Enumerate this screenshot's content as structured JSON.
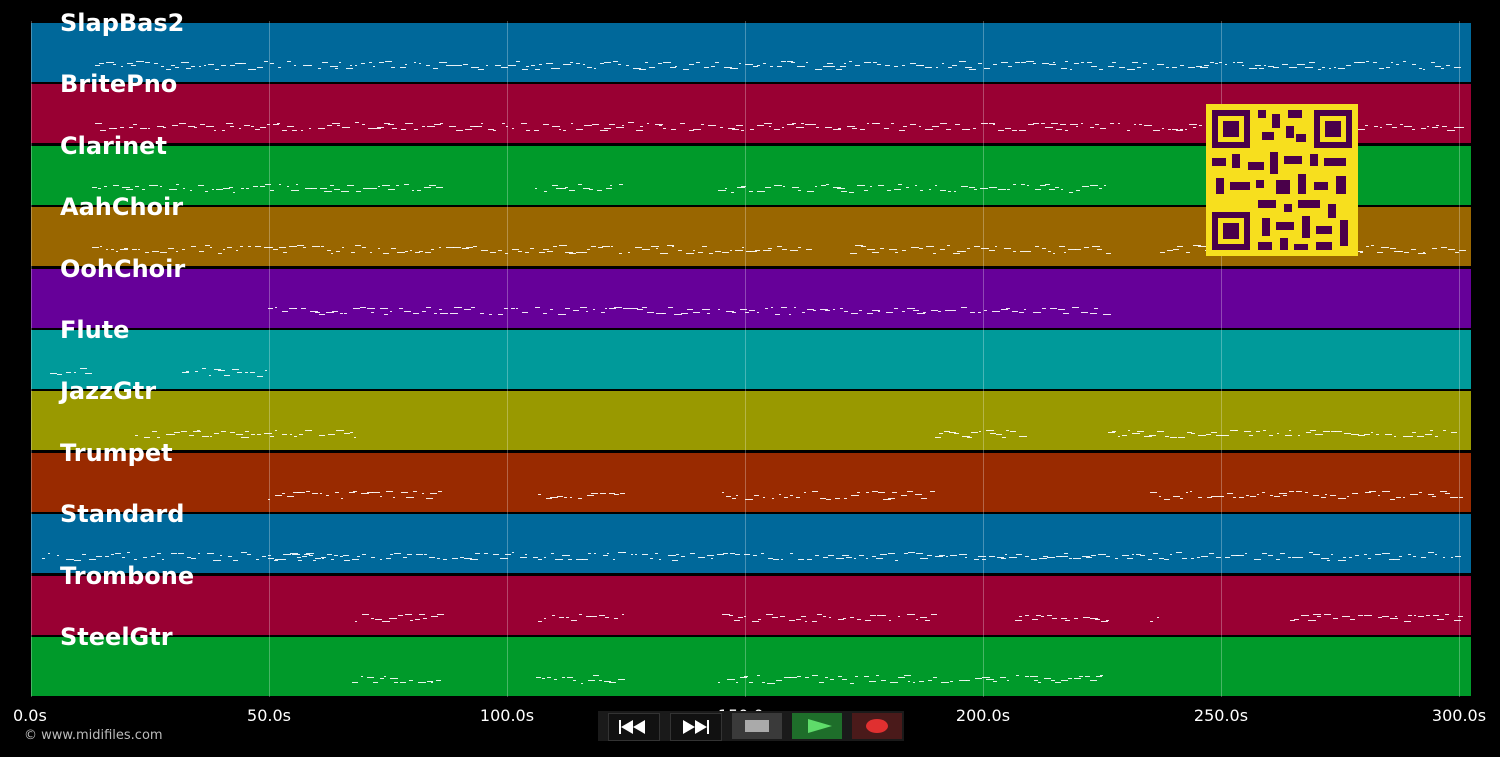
{
  "tracks": [
    {
      "name": "SlapBas2",
      "color": "#00689a"
    },
    {
      "name": "BritePno",
      "color": "#990033"
    },
    {
      "name": "Clarinet",
      "color": "#009a2a"
    },
    {
      "name": "AahChoir",
      "color": "#996600"
    },
    {
      "name": "OohChoir",
      "color": "#660099"
    },
    {
      "name": "Flute",
      "color": "#009a9a"
    },
    {
      "name": "JazzGtr",
      "color": "#999900"
    },
    {
      "name": "Trumpet",
      "color": "#992a00"
    },
    {
      "name": "Standard",
      "color": "#00689a"
    },
    {
      "name": "Trombone",
      "color": "#990033"
    },
    {
      "name": "SteelGtr",
      "color": "#009a2a"
    }
  ],
  "timeline": {
    "ticks": [
      "0.0s",
      "50.0s",
      "100.0s",
      "150.0s",
      "200.0s",
      "250.0s",
      "300.0s"
    ],
    "tick_values": [
      0,
      50,
      100,
      150,
      200,
      250,
      300
    ],
    "max_seconds": 302.5
  },
  "footer": {
    "copyright": "© www.midifiles.com"
  },
  "transport": {
    "buttons": [
      {
        "name": "rewind-button",
        "icon": "rewind-icon"
      },
      {
        "name": "fast-forward-button",
        "icon": "fast-forward-icon"
      },
      {
        "name": "stop-button",
        "icon": "stop-icon"
      },
      {
        "name": "play-button",
        "icon": "play-icon"
      },
      {
        "name": "record-button",
        "icon": "record-icon"
      }
    ]
  },
  "qr_code": {
    "icon": "qr-code-icon",
    "color": "#4a004a",
    "background": "#f7df1e"
  }
}
